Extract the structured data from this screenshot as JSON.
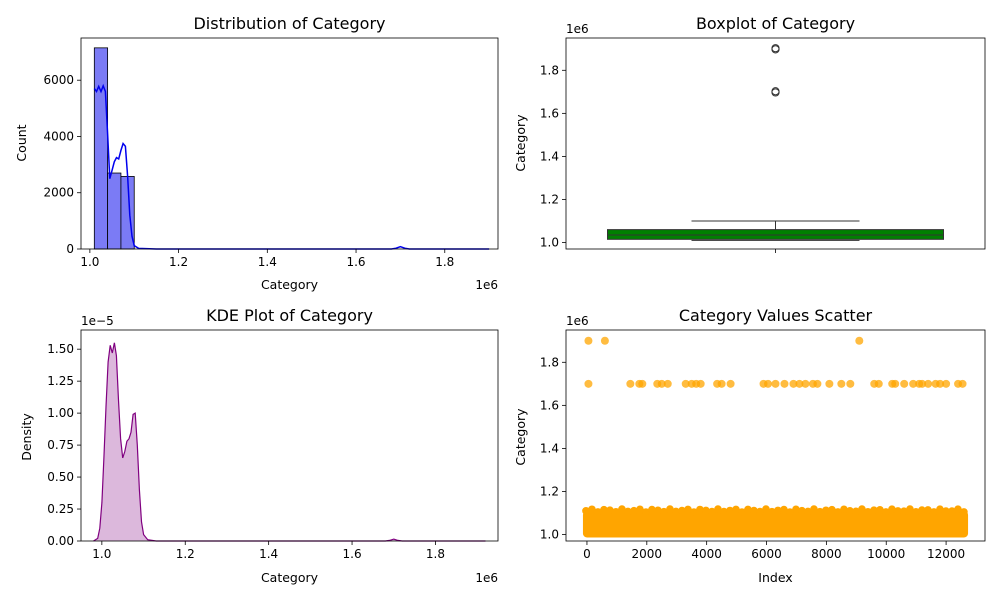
{
  "chart_data": [
    {
      "id": "hist",
      "type": "bar",
      "title": "Distribution of Category",
      "xlabel": "Category",
      "ylabel": "Count",
      "x_offset_label": "1e6",
      "xlim": [
        0.98,
        1.92
      ],
      "ylim": [
        0,
        7500
      ],
      "xticks": [
        1.0,
        1.2,
        1.4,
        1.6,
        1.8
      ],
      "xtick_labels": [
        "1.0",
        "1.2",
        "1.4",
        "1.6",
        "1.8"
      ],
      "yticks": [
        0,
        2000,
        4000,
        6000
      ],
      "ytick_labels": [
        "0",
        "2000",
        "4000",
        "6000"
      ],
      "bar_color": "#7b7bf5",
      "line_color": "#0000ee",
      "bars": [
        {
          "x0": 1.01,
          "x1": 1.04,
          "count": 7150
        },
        {
          "x0": 1.04,
          "x1": 1.07,
          "count": 2700
        },
        {
          "x0": 1.07,
          "x1": 1.1,
          "count": 2580
        }
      ],
      "kde_line": [
        [
          1.01,
          5700
        ],
        [
          1.015,
          5600
        ],
        [
          1.02,
          5780
        ],
        [
          1.025,
          5600
        ],
        [
          1.03,
          5800
        ],
        [
          1.035,
          5600
        ],
        [
          1.04,
          4100
        ],
        [
          1.045,
          2500
        ],
        [
          1.05,
          2800
        ],
        [
          1.055,
          3100
        ],
        [
          1.06,
          3250
        ],
        [
          1.065,
          3200
        ],
        [
          1.07,
          3500
        ],
        [
          1.075,
          3750
        ],
        [
          1.08,
          3650
        ],
        [
          1.085,
          2600
        ],
        [
          1.09,
          1200
        ],
        [
          1.095,
          450
        ],
        [
          1.1,
          120
        ],
        [
          1.11,
          20
        ],
        [
          1.15,
          0
        ],
        [
          1.5,
          0
        ],
        [
          1.68,
          0
        ],
        [
          1.69,
          30
        ],
        [
          1.7,
          80
        ],
        [
          1.71,
          30
        ],
        [
          1.72,
          0
        ],
        [
          1.9,
          0
        ]
      ]
    },
    {
      "id": "box",
      "type": "box",
      "title": "Boxplot of Category",
      "ylabel": "Category",
      "y_offset_label": "1e6",
      "ylim": [
        0.97,
        1.95
      ],
      "yticks": [
        1.0,
        1.2,
        1.4,
        1.6,
        1.8
      ],
      "ytick_labels": [
        "1.0",
        "1.2",
        "1.4",
        "1.6",
        "1.8"
      ],
      "box_color": "#008000",
      "whisker_low": 1.01,
      "q1": 1.015,
      "median": 1.035,
      "q3": 1.06,
      "whisker_high": 1.1,
      "outliers": [
        1.7,
        1.7,
        1.9,
        1.9
      ]
    },
    {
      "id": "kde",
      "type": "area",
      "title": "KDE Plot of Category",
      "xlabel": "Category",
      "ylabel": "Density",
      "x_offset_label": "1e6",
      "y_offset_label": "1e−5",
      "xlim": [
        0.95,
        1.95
      ],
      "ylim": [
        0,
        1.65
      ],
      "xticks": [
        1.0,
        1.2,
        1.4,
        1.6,
        1.8
      ],
      "xtick_labels": [
        "1.0",
        "1.2",
        "1.4",
        "1.6",
        "1.8"
      ],
      "yticks": [
        0,
        0.25,
        0.5,
        0.75,
        1.0,
        1.25,
        1.5
      ],
      "ytick_labels": [
        "0.00",
        "0.25",
        "0.50",
        "0.75",
        "1.00",
        "1.25",
        "1.50"
      ],
      "line_color": "#800080",
      "fill_color": "#dcb8dc",
      "points": [
        [
          0.98,
          0
        ],
        [
          0.99,
          0.02
        ],
        [
          0.995,
          0.1
        ],
        [
          1.0,
          0.3
        ],
        [
          1.005,
          0.65
        ],
        [
          1.01,
          1.05
        ],
        [
          1.015,
          1.4
        ],
        [
          1.02,
          1.53
        ],
        [
          1.025,
          1.47
        ],
        [
          1.03,
          1.55
        ],
        [
          1.035,
          1.45
        ],
        [
          1.04,
          1.1
        ],
        [
          1.045,
          0.8
        ],
        [
          1.05,
          0.65
        ],
        [
          1.055,
          0.7
        ],
        [
          1.06,
          0.78
        ],
        [
          1.065,
          0.8
        ],
        [
          1.07,
          0.85
        ],
        [
          1.075,
          0.99
        ],
        [
          1.08,
          1.0
        ],
        [
          1.085,
          0.75
        ],
        [
          1.09,
          0.4
        ],
        [
          1.095,
          0.15
        ],
        [
          1.1,
          0.05
        ],
        [
          1.11,
          0.01
        ],
        [
          1.13,
          0
        ],
        [
          1.5,
          0
        ],
        [
          1.68,
          0
        ],
        [
          1.69,
          0.005
        ],
        [
          1.7,
          0.015
        ],
        [
          1.71,
          0.005
        ],
        [
          1.72,
          0
        ],
        [
          1.92,
          0
        ]
      ]
    },
    {
      "id": "scatter",
      "type": "scatter",
      "title": "Category Values Scatter",
      "xlabel": "Index",
      "ylabel": "Category",
      "y_offset_label": "1e6",
      "xlim": [
        -700,
        13300
      ],
      "ylim": [
        0.97,
        1.95
      ],
      "xticks": [
        0,
        2000,
        4000,
        6000,
        8000,
        10000,
        12000
      ],
      "xtick_labels": [
        "0",
        "2000",
        "4000",
        "6000",
        "8000",
        "10000",
        "12000"
      ],
      "yticks": [
        1.0,
        1.2,
        1.4,
        1.6,
        1.8
      ],
      "ytick_labels": [
        "1.0",
        "1.2",
        "1.4",
        "1.6",
        "1.8"
      ],
      "point_color": "#ffa500",
      "dense_band": {
        "x_min": 0,
        "x_max": 12600,
        "y_min": 1.005,
        "y_max": 1.1
      },
      "points_1_9": [
        50,
        600,
        9100
      ],
      "points_1_7": [
        50,
        1450,
        1750,
        1850,
        2350,
        2500,
        2700,
        3300,
        3500,
        3650,
        3800,
        4350,
        4500,
        4800,
        5900,
        6050,
        6300,
        6600,
        6900,
        7100,
        7300,
        7550,
        7700,
        8100,
        8500,
        8800,
        9600,
        9750,
        10200,
        10300,
        10600,
        10900,
        11100,
        11200,
        11400,
        11650,
        11800,
        12000,
        12400,
        12550
      ]
    }
  ]
}
